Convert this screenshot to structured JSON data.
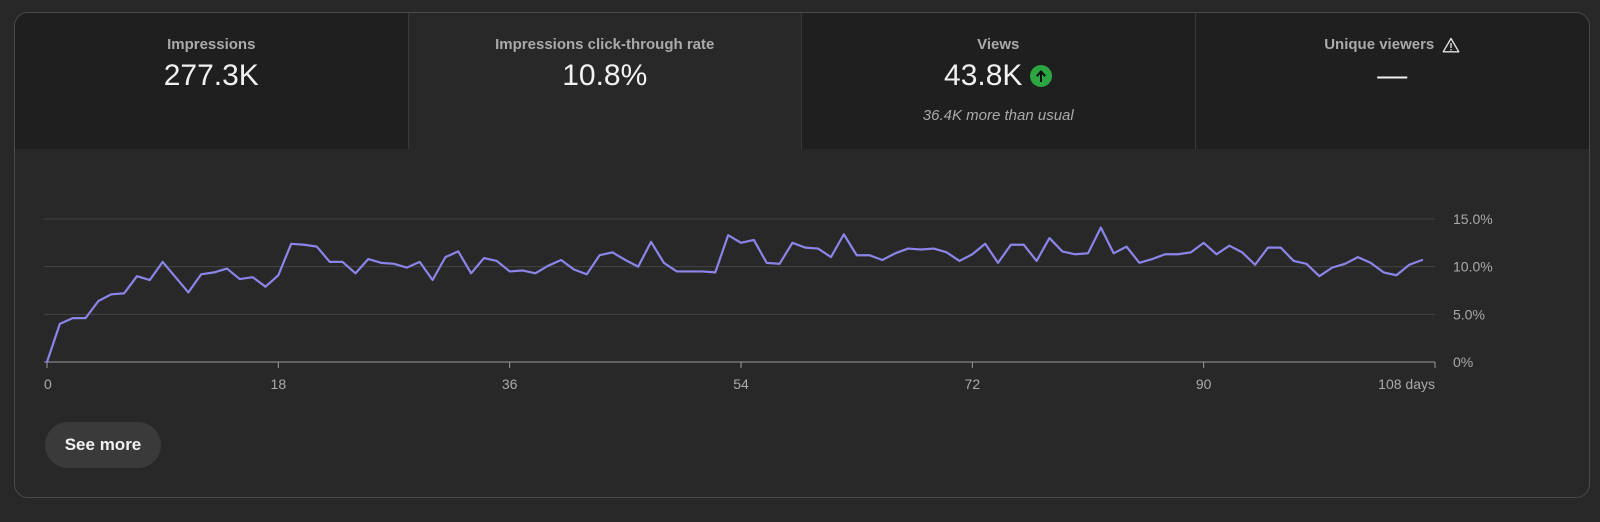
{
  "metrics": [
    {
      "label": "Impressions",
      "value": "277.3K"
    },
    {
      "label": "Impressions click-through rate",
      "value": "10.8%"
    },
    {
      "label": "Views",
      "value": "43.8K",
      "trend_icon": "arrow-up-circle-icon",
      "trend_color": "#2ba640",
      "sub": "36.4K more than usual"
    },
    {
      "label": "Unique viewers",
      "value": "—",
      "label_icon": "warning-triangle-icon"
    }
  ],
  "selected_metric": 1,
  "see_more_label": "See more",
  "chart_data": {
    "type": "line",
    "title": "",
    "xlabel": "",
    "ylabel": "",
    "x_ticks": [
      {
        "x": 0,
        "label": "0"
      },
      {
        "x": 18,
        "label": "18"
      },
      {
        "x": 36,
        "label": "36"
      },
      {
        "x": 54,
        "label": "54"
      },
      {
        "x": 72,
        "label": "72"
      },
      {
        "x": 90,
        "label": "90"
      },
      {
        "x": 108,
        "label": "108 days"
      }
    ],
    "y_ticks": [
      {
        "y": 0,
        "label": "0%"
      },
      {
        "y": 5,
        "label": "5.0%"
      },
      {
        "y": 10,
        "label": "10.0%"
      },
      {
        "y": 15,
        "label": "15.0%"
      }
    ],
    "xlim": [
      0,
      108
    ],
    "ylim": [
      0,
      15
    ],
    "grid": true,
    "line_color": "#8c84e8",
    "series": [
      {
        "values": [
          0.0,
          4.0,
          4.6,
          4.6,
          6.4,
          7.1,
          7.2,
          9.0,
          8.6,
          10.5,
          8.9,
          7.3,
          9.2,
          9.4,
          9.8,
          8.7,
          8.9,
          7.9,
          9.1,
          12.4,
          12.3,
          12.1,
          10.5,
          10.5,
          9.3,
          10.8,
          10.4,
          10.3,
          9.9,
          10.5,
          8.6,
          11.0,
          11.6,
          9.3,
          10.9,
          10.6,
          9.5,
          9.6,
          9.3,
          10.1,
          10.7,
          9.7,
          9.2,
          11.2,
          11.5,
          10.7,
          10.0,
          12.6,
          10.4,
          9.5,
          9.5,
          9.5,
          9.4,
          13.3,
          12.5,
          12.8,
          10.4,
          10.3,
          12.5,
          12.0,
          11.9,
          11.0,
          13.4,
          11.2,
          11.2,
          10.7,
          11.4,
          11.9,
          11.8,
          11.9,
          11.5,
          10.6,
          11.3,
          12.4,
          10.4,
          12.3,
          12.3,
          10.6,
          13.0,
          11.6,
          11.3,
          11.4,
          14.1,
          11.4,
          12.1,
          10.4,
          10.8,
          11.3,
          11.3,
          11.5,
          12.5,
          11.3,
          12.2,
          11.5,
          10.2,
          12.0,
          12.0,
          10.6,
          10.3,
          9.0,
          9.9,
          10.3,
          11.0,
          10.4,
          9.4,
          9.1,
          10.2,
          10.7
        ]
      }
    ]
  }
}
